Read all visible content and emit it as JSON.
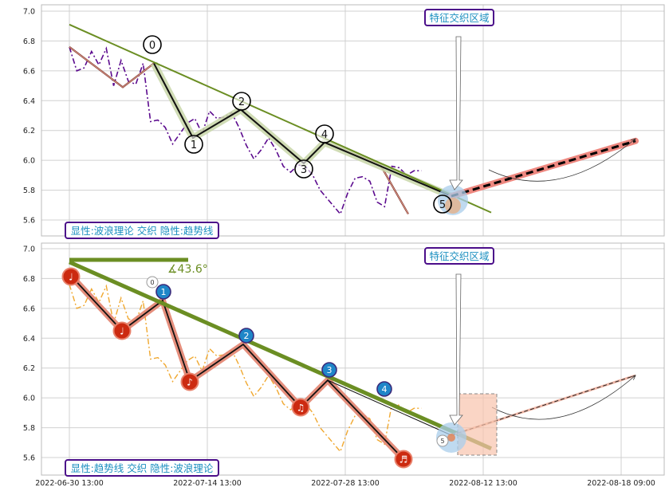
{
  "chart_data": [
    {
      "type": "line",
      "x_ticks": [
        "2022-06-30 13:00",
        "2022-07-14 13:00",
        "2022-07-28 13:00",
        "2022-08-12 13:00",
        "2022-08-18 09:00"
      ],
      "x_tick_labels": [
        "",
        "",
        "",
        "",
        ""
      ],
      "y_ticks": [
        "5.6",
        "5.8",
        "6.0",
        "6.2",
        "6.4",
        "6.6",
        "6.8",
        "7.0"
      ],
      "ylim": [
        5.47,
        7.04
      ],
      "grid": true,
      "series": [
        {
          "color": "#5b0a8e",
          "style": "dash-dot",
          "values": [
            6.76,
            6.6,
            6.62,
            6.73,
            6.64,
            6.75,
            6.5,
            6.67,
            6.53,
            6.51,
            6.65,
            6.26,
            6.27,
            6.22,
            6.11,
            6.18,
            6.25,
            6.28,
            6.18,
            6.33,
            6.28,
            6.29,
            6.32,
            6.22,
            6.1,
            6.01,
            6.07,
            6.15,
            6.07,
            5.96,
            5.92,
            5.97,
            5.96,
            5.9,
            5.8,
            5.64,
            5.78,
            5.88,
            5.89,
            5.86,
            5.72,
            5.69,
            5.96,
            5.95,
            5.9,
            5.93,
            5.93
          ]
        }
      ],
      "wave_points": [
        {
          "label": "0",
          "y": 6.65
        },
        {
          "label": "1",
          "y": 6.15
        },
        {
          "label": "2",
          "y": 6.34
        },
        {
          "label": "3",
          "y": 5.98
        },
        {
          "label": "4",
          "y": 6.12
        },
        {
          "label": "5",
          "y": 5.76
        }
      ],
      "projection": {
        "start": 5.76,
        "end": 6.13
      },
      "trendline": {
        "start": 6.91,
        "end": 5.65
      },
      "annotations": [
        "特征交织区域"
      ],
      "legend_text": "显性:波浪理论 交织 隐性:趋势线"
    },
    {
      "type": "line",
      "x_ticks": [
        "2022-06-30 13:00",
        "2022-07-14 13:00",
        "2022-07-28 13:00",
        "2022-08-12 13:00",
        "2022-08-18 09:00"
      ],
      "x_tick_labels": [
        "2022-06-30 13:00",
        "2022-07-14 13:00",
        "2022-07-28 13:00",
        "2022-08-12 13:00",
        "2022-08-18 09:00"
      ],
      "y_ticks": [
        "5.6",
        "5.8",
        "6.0",
        "6.2",
        "6.4",
        "6.6",
        "6.8",
        "7.0"
      ],
      "ylim": [
        5.47,
        7.04
      ],
      "grid": true,
      "series": [
        {
          "color": "#f0a830",
          "style": "dash-dot",
          "values": [
            6.76,
            6.6,
            6.62,
            6.73,
            6.64,
            6.75,
            6.5,
            6.67,
            6.53,
            6.51,
            6.65,
            6.26,
            6.27,
            6.22,
            6.11,
            6.18,
            6.25,
            6.28,
            6.18,
            6.33,
            6.28,
            6.29,
            6.32,
            6.22,
            6.1,
            6.01,
            6.07,
            6.15,
            6.07,
            5.96,
            5.92,
            5.97,
            5.96,
            5.9,
            5.8,
            5.64,
            5.78,
            5.88,
            5.89,
            5.86,
            5.72,
            5.69,
            5.96,
            5.95,
            5.9,
            5.93,
            5.93
          ]
        }
      ],
      "note_markers": [
        {
          "glyph": "♩",
          "y": 6.8
        },
        {
          "glyph": "♩",
          "y": 6.46
        },
        {
          "glyph": "♪",
          "y": 6.1
        },
        {
          "glyph": "♫",
          "y": 5.93
        },
        {
          "glyph": "♬",
          "y": 5.57
        }
      ],
      "trend_points": [
        {
          "label": "0",
          "y": 6.76
        },
        {
          "label": "1",
          "y": 6.7
        },
        {
          "label": "2",
          "y": 6.41
        },
        {
          "label": "3",
          "y": 6.18
        },
        {
          "label": "4",
          "y": 6.04
        },
        {
          "label": "5",
          "y": 5.69
        }
      ],
      "projection": {
        "start": 5.79,
        "end": 6.14
      },
      "trendline": {
        "start": 6.91,
        "end": 5.66
      },
      "angle_label": "∡43.6°",
      "annotations": [
        "特征交织区域"
      ],
      "legend_text": "显性:趋势线 交织 隐性:波浪理论"
    }
  ]
}
